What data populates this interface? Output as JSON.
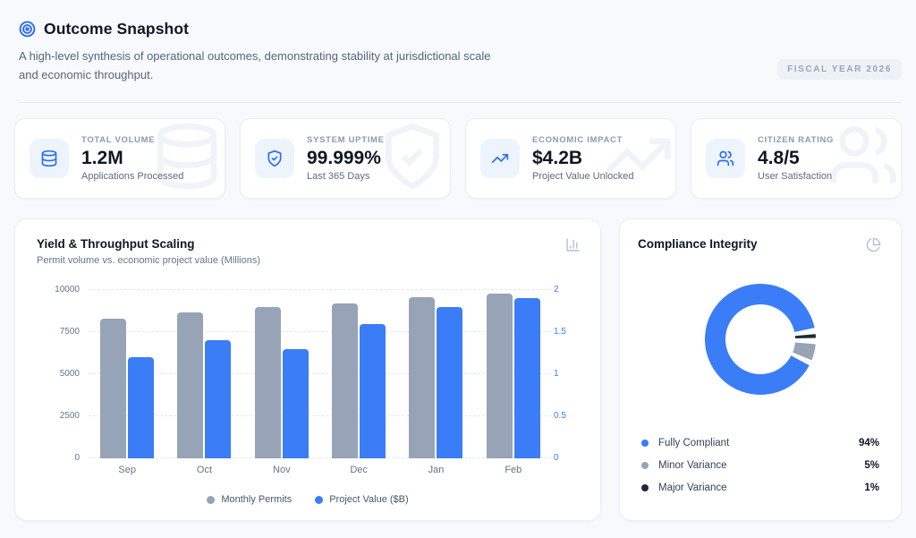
{
  "header": {
    "title": "Outcome Snapshot",
    "subtitle": "A high-level synthesis of operational outcomes, demonstrating stability at jurisdictional scale and economic throughput.",
    "badge": "FISCAL YEAR 2026"
  },
  "stats": [
    {
      "label": "TOTAL VOLUME",
      "value": "1.2M",
      "caption": "Applications Processed",
      "icon": "database-icon"
    },
    {
      "label": "SYSTEM UPTIME",
      "value": "99.999%",
      "caption": "Last 365 Days",
      "icon": "shield-check-icon"
    },
    {
      "label": "ECONOMIC IMPACT",
      "value": "$4.2B",
      "caption": "Project Value Unlocked",
      "icon": "trending-up-icon"
    },
    {
      "label": "CITIZEN RATING",
      "value": "4.8/5",
      "caption": "User Satisfaction",
      "icon": "users-icon"
    }
  ],
  "panels": {
    "bar": {
      "title": "Yield & Throughput Scaling",
      "subtitle": "Permit volume vs. economic project value (Millions)",
      "corner_icon": "bar-chart-icon"
    },
    "donut": {
      "title": "Compliance Integrity",
      "corner_icon": "pie-chart-icon"
    }
  },
  "colors": {
    "accent_blue": "#3B7DF6",
    "slate_gray": "#97A3B6",
    "dark_navy": "#1E2A3B",
    "grid": "#E3E9F1"
  },
  "chart_data": [
    {
      "type": "bar",
      "title": "Yield & Throughput Scaling",
      "subtitle": "Permit volume vs. economic project value (Millions)",
      "categories": [
        "Sep",
        "Oct",
        "Nov",
        "Dec",
        "Jan",
        "Feb"
      ],
      "series": [
        {
          "name": "Monthly Permits",
          "axis": "left",
          "color": "#97A3B6",
          "values": [
            8300,
            8650,
            9000,
            9200,
            9600,
            9800
          ]
        },
        {
          "name": "Project Value ($B)",
          "axis": "right",
          "color": "#3B7DF6",
          "values": [
            1.2,
            1.4,
            1.3,
            1.6,
            1.8,
            1.9
          ]
        }
      ],
      "left_axis": {
        "ticks": [
          0,
          2500,
          5000,
          7500,
          10000
        ],
        "max": 10000
      },
      "right_axis": {
        "ticks": [
          0,
          0.5,
          1,
          1.5,
          2
        ],
        "max": 2
      },
      "grid": "horizontal-dashed",
      "legend_position": "bottom"
    },
    {
      "type": "pie",
      "title": "Compliance Integrity",
      "style": "donut, white gaps between segments, small slices at 3-4 o'clock",
      "rotation_deg_clockwise_from_top": 118,
      "draw_order": [
        0,
        2,
        1
      ],
      "segments": [
        {
          "label": "Fully Compliant",
          "value": 94,
          "display": "94%",
          "color": "#3B7DF6"
        },
        {
          "label": "Minor Variance",
          "value": 5,
          "display": "5%",
          "color": "#97A3B6"
        },
        {
          "label": "Major Variance",
          "value": 1,
          "display": "1%",
          "color": "#1E2A3B"
        }
      ]
    }
  ]
}
